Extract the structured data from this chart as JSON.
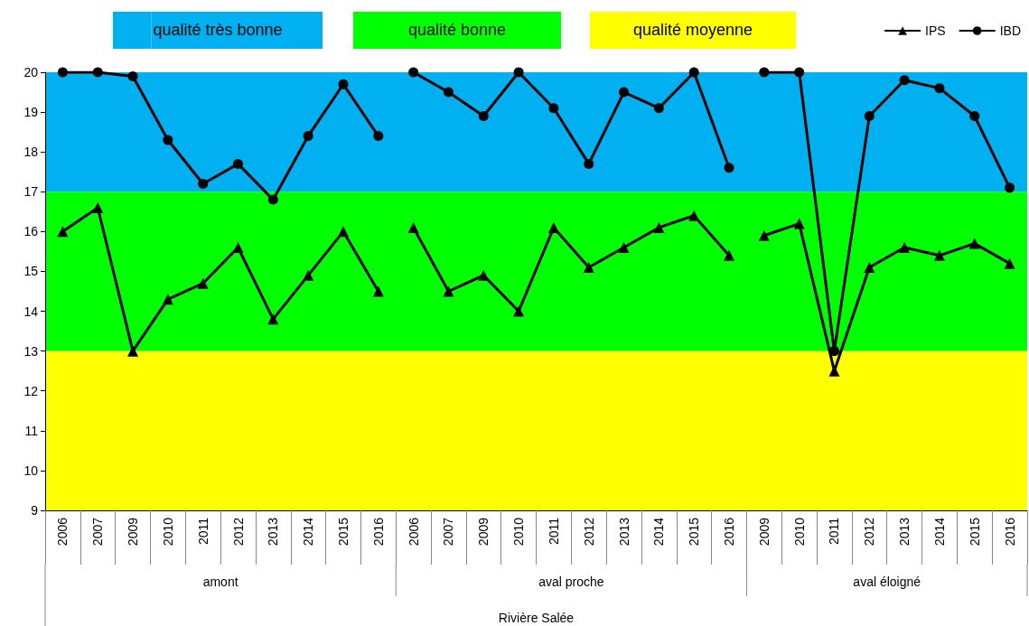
{
  "chart_data": {
    "type": "line",
    "categories": [
      "2006",
      "2007",
      "2009",
      "2010",
      "2011",
      "2012",
      "2013",
      "2014",
      "2015",
      "2016",
      "2006",
      "2007",
      "2009",
      "2010",
      "2011",
      "2012",
      "2013",
      "2014",
      "2015",
      "2016",
      "2009",
      "2010",
      "2011",
      "2012",
      "2013",
      "2014",
      "2015",
      "2016"
    ],
    "series": [
      {
        "name": "IPS",
        "color": "#000000",
        "marker": "triangle",
        "values": [
          16,
          16.6,
          13,
          14.3,
          14.7,
          15.6,
          13.8,
          14.9,
          16,
          14.5,
          null,
          null,
          null,
          null,
          null,
          null,
          null,
          null,
          null,
          null,
          null,
          null,
          null,
          null,
          null,
          null,
          null,
          null
        ]
      },
      {
        "name": "IBD",
        "color": "#000000",
        "marker": "circle",
        "values": [
          20,
          20,
          19.9,
          18.3,
          17.2,
          17.7,
          16.8,
          18.4,
          19.7,
          18.4,
          null,
          null,
          null,
          null,
          null,
          null,
          null,
          null,
          null,
          null,
          null,
          null,
          null,
          null,
          null,
          null,
          null,
          null
        ]
      },
      {
        "color": "#000000",
        "marker": "triangle",
        "values": [
          null,
          null,
          null,
          null,
          null,
          null,
          null,
          null,
          null,
          null,
          16.1,
          14.5,
          14.9,
          14,
          16.1,
          15.1,
          15.6,
          16.1,
          16.4,
          15.4,
          null,
          null,
          null,
          null,
          null,
          null,
          null,
          null
        ]
      },
      {
        "color": "#000000",
        "marker": "circle",
        "values": [
          null,
          null,
          null,
          null,
          null,
          null,
          null,
          null,
          null,
          null,
          20,
          19.5,
          18.9,
          20,
          19.1,
          17.7,
          19.5,
          19.1,
          20,
          17.6,
          null,
          null,
          null,
          null,
          null,
          null,
          null,
          null
        ]
      },
      {
        "color": "#000000",
        "marker": "triangle",
        "values": [
          null,
          null,
          null,
          null,
          null,
          null,
          null,
          null,
          null,
          null,
          null,
          null,
          null,
          null,
          null,
          null,
          null,
          null,
          null,
          null,
          15.9,
          16.2,
          12.5,
          15.1,
          15.6,
          15.4,
          15.7,
          15.2
        ]
      },
      {
        "color": "#000000",
        "marker": "circle",
        "values": [
          null,
          null,
          null,
          null,
          null,
          null,
          null,
          null,
          null,
          null,
          null,
          null,
          null,
          null,
          null,
          null,
          null,
          null,
          null,
          null,
          20,
          20,
          13,
          18.9,
          19.8,
          19.6,
          18.9,
          17.1
        ]
      }
    ],
    "ylim": [
      9,
      20
    ],
    "yticks": [
      9,
      10,
      11,
      12,
      13,
      14,
      15,
      16,
      17,
      18,
      19,
      20
    ],
    "bands": [
      {
        "axis": "y",
        "from": 17,
        "to": 20,
        "label": "qualité très bonne",
        "color": "#00b0f0"
      },
      {
        "axis": "y",
        "from": 13,
        "to": 17,
        "label": "qualité bonne",
        "color": "#00ff00"
      },
      {
        "axis": "y",
        "from": 9,
        "to": 13,
        "label": "qualité moyenne",
        "color": "#ffff00"
      }
    ],
    "annotations": [
      "amont",
      "aval proche",
      "aval éloigné",
      "Rivière Salée"
    ],
    "legend": "top right",
    "grid": false
  }
}
